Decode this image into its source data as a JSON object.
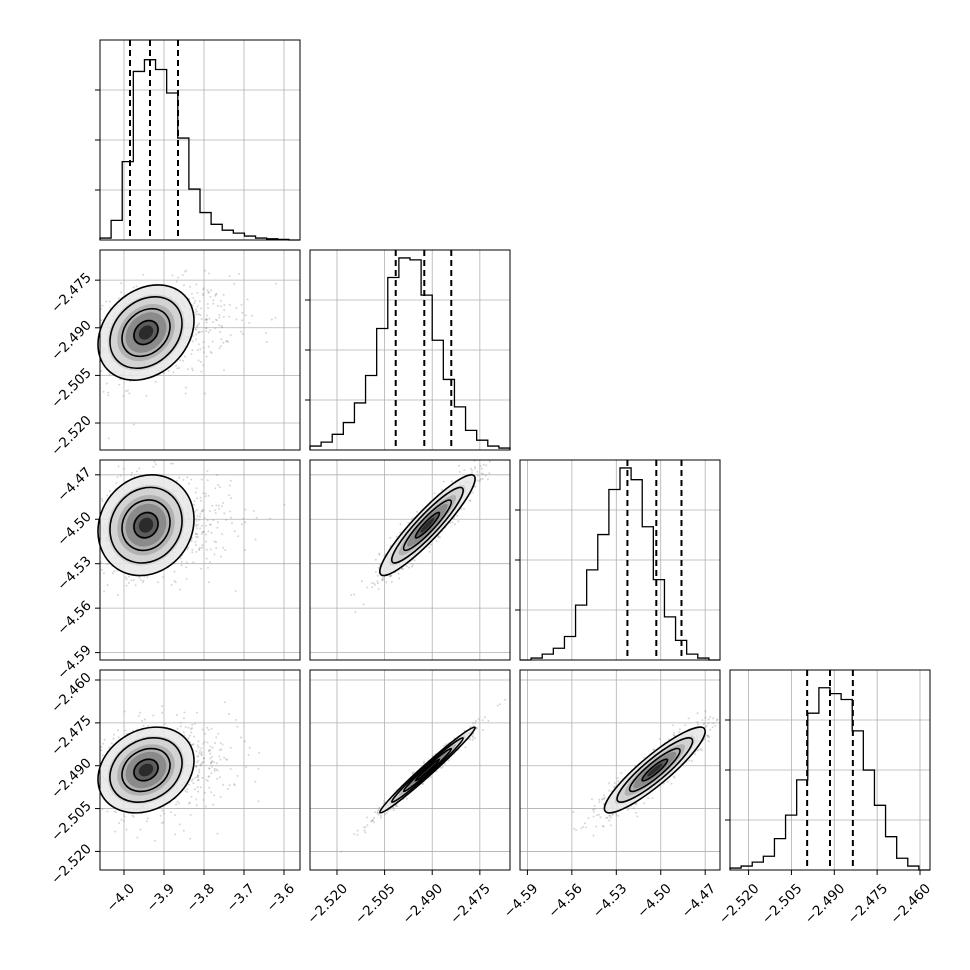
{
  "chart_data": {
    "type": "corner",
    "n_params": 4,
    "grid": true,
    "params": [
      {
        "range": [
          -4.06,
          -3.56
        ],
        "ticks": [
          -4.0,
          -3.9,
          -3.8,
          -3.7,
          -3.6
        ],
        "tick_labels": [
          "−4.0",
          "−3.9",
          "−3.8",
          "−3.7",
          "−3.6"
        ],
        "quantiles": [
          -3.985,
          -3.935,
          -3.865
        ],
        "hist_values": [
          0.01,
          0.1,
          0.4,
          0.86,
          0.92,
          0.87,
          0.75,
          0.52,
          0.26,
          0.14,
          0.08,
          0.05,
          0.035,
          0.02,
          0.01,
          0.006,
          0.003,
          0.0
        ],
        "mean_2d": -3.945,
        "std_2d": 0.06
      },
      {
        "range": [
          -2.5285,
          -2.4655
        ],
        "ticks": [
          -2.52,
          -2.505,
          -2.49,
          -2.475
        ],
        "tick_labels": [
          "−2.520",
          "−2.505",
          "−2.490",
          "−2.475"
        ],
        "quantiles": [
          -2.5015,
          -2.4925,
          -2.484
        ],
        "hist_values": [
          0.02,
          0.04,
          0.08,
          0.14,
          0.24,
          0.38,
          0.62,
          0.88,
          0.98,
          0.97,
          0.79,
          0.56,
          0.36,
          0.22,
          0.1,
          0.05,
          0.02,
          0.01
        ],
        "mean_2d": -2.4915,
        "std_2d": 0.0075
      },
      {
        "range": [
          -4.595,
          -4.46
        ],
        "ticks": [
          -4.59,
          -4.56,
          -4.53,
          -4.5,
          -4.47
        ],
        "tick_labels": [
          "−4.59",
          "−4.56",
          "−4.53",
          "−4.50",
          "−4.47"
        ],
        "quantiles": [
          -4.5225,
          -4.503,
          -4.486
        ],
        "hist_values": [
          0.0,
          0.01,
          0.03,
          0.06,
          0.12,
          0.28,
          0.46,
          0.64,
          0.87,
          0.98,
          0.92,
          0.68,
          0.41,
          0.22,
          0.1,
          0.03,
          0.01,
          0.0
        ],
        "mean_2d": -4.504,
        "std_2d": 0.017
      },
      {
        "range": [
          -2.5265,
          -2.4565
        ],
        "ticks": [
          -2.52,
          -2.505,
          -2.49,
          -2.475,
          -2.46
        ],
        "tick_labels": [
          "−2.520",
          "−2.505",
          "−2.490",
          "−2.475",
          "−2.460"
        ],
        "quantiles": [
          -2.4995,
          -2.4915,
          -2.4835
        ],
        "hist_values": [
          0.01,
          0.02,
          0.04,
          0.07,
          0.16,
          0.28,
          0.46,
          0.8,
          0.93,
          0.9,
          0.87,
          0.71,
          0.51,
          0.33,
          0.17,
          0.06,
          0.02,
          0.0
        ],
        "mean_2d": -2.4915,
        "std_2d": 0.0075
      }
    ],
    "correlations": {
      "1-0": 0.25,
      "2-0": 0.12,
      "3-0": 0.22,
      "2-1": 0.92,
      "3-1": 0.985,
      "3-2": 0.9
    }
  }
}
